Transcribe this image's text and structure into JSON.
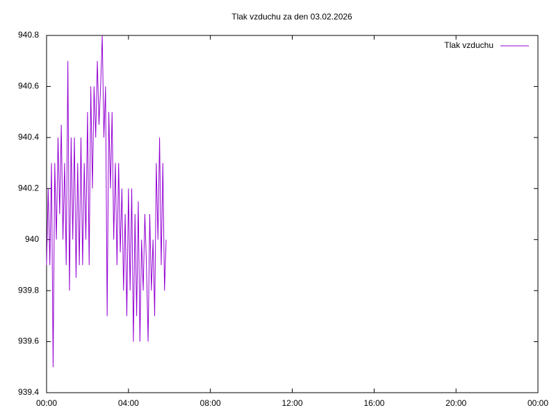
{
  "chart_data": {
    "type": "line",
    "title": "Tlak vzduchu za den 03.02.2026",
    "x": [
      0,
      0.08,
      0.16,
      0.24,
      0.32,
      0.4,
      0.48,
      0.56,
      0.64,
      0.72,
      0.8,
      0.88,
      0.96,
      1.04,
      1.12,
      1.2,
      1.28,
      1.36,
      1.44,
      1.52,
      1.6,
      1.68,
      1.76,
      1.84,
      1.92,
      2.0,
      2.08,
      2.16,
      2.24,
      2.32,
      2.4,
      2.48,
      2.56,
      2.64,
      2.72,
      2.8,
      2.88,
      2.96,
      3.04,
      3.12,
      3.2,
      3.28,
      3.36,
      3.44,
      3.52,
      3.6,
      3.68,
      3.76,
      3.84,
      3.92,
      4.0,
      4.08,
      4.16,
      4.24,
      4.32,
      4.4,
      4.48,
      4.56,
      4.64,
      4.72,
      4.8,
      4.88,
      4.96,
      5.04,
      5.12,
      5.2,
      5.28,
      5.36,
      5.44,
      5.52,
      5.6,
      5.68,
      5.76,
      5.84
    ],
    "series": [
      {
        "name": "Tlak vzduchu",
        "color": "#9400d3",
        "values": [
          939.9,
          940.2,
          939.9,
          940.3,
          939.5,
          940.3,
          940.0,
          940.4,
          940.1,
          940.45,
          940.0,
          940.3,
          939.9,
          940.7,
          939.8,
          940.4,
          940.0,
          940.4,
          939.85,
          940.3,
          939.9,
          940.4,
          939.9,
          940.3,
          940.0,
          940.5,
          939.9,
          940.6,
          940.2,
          940.6,
          940.4,
          940.7,
          940.45,
          940.6,
          940.8,
          940.4,
          940.6,
          939.7,
          940.5,
          940.2,
          940.5,
          940.0,
          940.3,
          939.9,
          940.3,
          939.95,
          940.2,
          939.8,
          940.1,
          939.7,
          940.2,
          939.8,
          940.2,
          939.6,
          940.1,
          939.7,
          940.15,
          939.6,
          940.0,
          939.8,
          940.1,
          939.9,
          939.6,
          940.1,
          939.8,
          940.0,
          939.7,
          940.3,
          940.0,
          940.4,
          939.9,
          940.3,
          939.8,
          940.0
        ]
      }
    ],
    "xlim": [
      0,
      24
    ],
    "xticks": [
      {
        "value": 0,
        "label": "00:00"
      },
      {
        "value": 4,
        "label": "04:00"
      },
      {
        "value": 8,
        "label": "08:00"
      },
      {
        "value": 12,
        "label": "12:00"
      },
      {
        "value": 16,
        "label": "16:00"
      },
      {
        "value": 20,
        "label": "20:00"
      },
      {
        "value": 24,
        "label": "00:00"
      }
    ],
    "ylim": [
      939.4,
      940.8
    ],
    "yticks": [
      939.4,
      939.6,
      939.8,
      940,
      940.2,
      940.4,
      940.6,
      940.8
    ],
    "legend": "top-right"
  }
}
